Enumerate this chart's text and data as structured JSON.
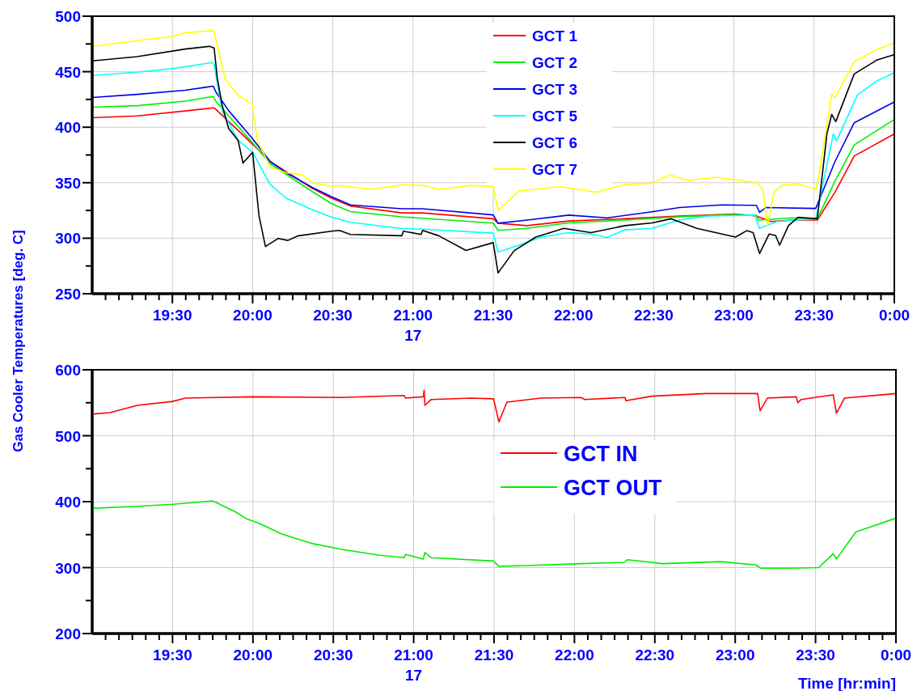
{
  "chart_data": [
    {
      "type": "line",
      "ylabel": "Gas Cooler Temperatures [deg. C]",
      "xlim": [
        19,
        24
      ],
      "ylim": [
        250,
        500
      ],
      "yticks": [
        250,
        {
          "value": 275,
          "label": null
        },
        300,
        {
          "value": 325,
          "label": null
        },
        350,
        {
          "value": 375,
          "label": null
        },
        400,
        {
          "value": 425,
          "label": null
        },
        450,
        {
          "value": 475,
          "label": null
        },
        500
      ],
      "xticks": [
        {
          "value": 19.0833,
          "label": null
        },
        {
          "value": 19.1667,
          "label": null
        },
        {
          "value": 19.25,
          "label": null
        },
        {
          "value": 19.3333,
          "label": null
        },
        {
          "value": 19.4167,
          "label": null
        },
        {
          "value": 19.5,
          "label": "19:30"
        },
        {
          "value": 19.5833,
          "label": null
        },
        {
          "value": 19.6667,
          "label": null
        },
        {
          "value": 19.75,
          "label": null
        },
        {
          "value": 19.8333,
          "label": null
        },
        {
          "value": 19.9167,
          "label": null
        },
        {
          "value": 20,
          "label": "20:00"
        },
        {
          "value": 20.0833,
          "label": null
        },
        {
          "value": 20.1667,
          "label": null
        },
        {
          "value": 20.25,
          "label": null
        },
        {
          "value": 20.3333,
          "label": null
        },
        {
          "value": 20.4167,
          "label": null
        },
        {
          "value": 20.5,
          "label": "20:30"
        },
        {
          "value": 20.5833,
          "label": null
        },
        {
          "value": 20.6667,
          "label": null
        },
        {
          "value": 20.75,
          "label": null
        },
        {
          "value": 20.8333,
          "label": null
        },
        {
          "value": 20.9167,
          "label": null
        },
        {
          "value": 21,
          "label": "21:00\n17"
        },
        {
          "value": 21.0833,
          "label": null
        },
        {
          "value": 21.1667,
          "label": null
        },
        {
          "value": 21.25,
          "label": null
        },
        {
          "value": 21.3333,
          "label": null
        },
        {
          "value": 21.4167,
          "label": null
        },
        {
          "value": 21.5,
          "label": "21:30"
        },
        {
          "value": 21.5833,
          "label": null
        },
        {
          "value": 21.6667,
          "label": null
        },
        {
          "value": 21.75,
          "label": null
        },
        {
          "value": 21.8333,
          "label": null
        },
        {
          "value": 21.9167,
          "label": null
        },
        {
          "value": 22,
          "label": "22:00"
        },
        {
          "value": 22.0833,
          "label": null
        },
        {
          "value": 22.1667,
          "label": null
        },
        {
          "value": 22.25,
          "label": null
        },
        {
          "value": 22.3333,
          "label": null
        },
        {
          "value": 22.4167,
          "label": null
        },
        {
          "value": 22.5,
          "label": "22:30"
        },
        {
          "value": 22.5833,
          "label": null
        },
        {
          "value": 22.6667,
          "label": null
        },
        {
          "value": 22.75,
          "label": null
        },
        {
          "value": 22.8333,
          "label": null
        },
        {
          "value": 22.9167,
          "label": null
        },
        {
          "value": 23,
          "label": "23:00"
        },
        {
          "value": 23.0833,
          "label": null
        },
        {
          "value": 23.1667,
          "label": null
        },
        {
          "value": 23.25,
          "label": null
        },
        {
          "value": 23.3333,
          "label": null
        },
        {
          "value": 23.4167,
          "label": null
        },
        {
          "value": 23.5,
          "label": "23:30"
        },
        {
          "value": 23.5833,
          "label": null
        },
        {
          "value": 23.6667,
          "label": null
        },
        {
          "value": 23.75,
          "label": null
        },
        {
          "value": 23.8333,
          "label": null
        },
        {
          "value": 23.9167,
          "label": null
        },
        {
          "value": 24,
          "label": "0:00"
        }
      ],
      "grid": true,
      "legend": "top",
      "series": [
        {
          "name": "GCT 1",
          "color": "#ff0000",
          "x": [
            19.0,
            19.28,
            19.58,
            19.76,
            20.0,
            20.11,
            20.37,
            20.49,
            20.61,
            20.93,
            21.06,
            21.5,
            21.53,
            21.71,
            21.97,
            22.32,
            22.66,
            23.01,
            23.14,
            23.23,
            23.36,
            23.52,
            23.63,
            23.75,
            24.0
          ],
          "values": [
            408.5,
            410.2,
            414.6,
            417.5,
            384.7,
            369,
            345.1,
            336.2,
            329,
            322.8,
            322.8,
            317.5,
            313.5,
            311.3,
            315.5,
            317.5,
            320,
            321.8,
            320,
            315,
            316.3,
            316.3,
            341.4,
            374,
            394
          ]
        },
        {
          "name": "GCT 2",
          "color": "#00ee00",
          "x": [
            19.0,
            19.28,
            19.58,
            19.755,
            19.77,
            20.0,
            20.11,
            20.37,
            20.49,
            20.61,
            20.93,
            21.06,
            21.5,
            21.53,
            21.71,
            21.97,
            22.32,
            22.66,
            23.01,
            23.14,
            23.155,
            23.36,
            23.52,
            23.63,
            23.75,
            24.0
          ],
          "values": [
            418,
            419.4,
            423.5,
            427.7,
            423.5,
            386,
            367,
            342.2,
            331.3,
            324,
            319.2,
            318,
            313.6,
            307,
            308.8,
            313.8,
            316.3,
            319.3,
            321.3,
            320.8,
            316.3,
            318.3,
            317.5,
            351.4,
            384,
            407
          ]
        },
        {
          "name": "GCT 3",
          "color": "#0000ee",
          "x": [
            19.0,
            19.28,
            19.58,
            19.755,
            19.77,
            19.85,
            20.0,
            20.11,
            20.21,
            20.37,
            20.49,
            20.61,
            20.93,
            21.06,
            21.5,
            21.53,
            21.71,
            21.97,
            22.21,
            22.49,
            22.66,
            22.92,
            23.14,
            23.16,
            23.2,
            23.51,
            23.63,
            23.75,
            24.0
          ],
          "values": [
            426.7,
            429.6,
            433.3,
            437,
            432,
            415,
            389.6,
            369,
            359,
            345.9,
            337.4,
            330,
            326.5,
            326.5,
            321,
            313.5,
            316.3,
            320.8,
            318.3,
            323.8,
            327.6,
            330,
            329.6,
            323.3,
            327.6,
            326.8,
            369,
            404,
            422.8
          ]
        },
        {
          "name": "GCT 5",
          "color": "#00ffff",
          "x": [
            19.0,
            19.28,
            19.5,
            19.747,
            19.76,
            19.81,
            19.91,
            20.0,
            20.11,
            20.21,
            20.36,
            20.49,
            20.61,
            20.93,
            21.05,
            21.5,
            21.53,
            21.66,
            21.8,
            21.97,
            22.11,
            22.21,
            22.32,
            22.49,
            22.66,
            22.84,
            23.13,
            23.16,
            23.27,
            23.51,
            23.62,
            23.64,
            23.77,
            23.89,
            24.0
          ],
          "values": [
            446.6,
            449.5,
            452.7,
            458.3,
            456.4,
            415,
            388,
            377.4,
            348.3,
            336,
            326.4,
            319,
            314.3,
            308.7,
            308.3,
            304.6,
            287.6,
            293.7,
            301,
            305,
            303.8,
            300.7,
            307.5,
            308.8,
            316.3,
            320,
            320.8,
            308.8,
            315,
            317.5,
            394,
            387.7,
            429,
            441.6,
            449
          ]
        },
        {
          "name": "GCT 6",
          "color": "#000000",
          "x": [
            19.0,
            19.28,
            19.58,
            19.73,
            19.76,
            19.78,
            19.81,
            19.85,
            19.91,
            19.94,
            20.0,
            20.04,
            20.08,
            20.16,
            20.22,
            20.28,
            20.49,
            20.54,
            20.61,
            20.93,
            20.94,
            21.05,
            21.06,
            21.16,
            21.33,
            21.5,
            21.53,
            21.63,
            21.765,
            21.94,
            22.11,
            22.32,
            22.49,
            22.61,
            22.77,
            23.01,
            23.08,
            23.12,
            23.16,
            23.22,
            23.26,
            23.285,
            23.34,
            23.4,
            23.52,
            23.58,
            23.61,
            23.635,
            23.75,
            23.89,
            24.0
          ],
          "values": [
            459.7,
            463.6,
            470.4,
            472.8,
            471.4,
            444,
            420,
            399,
            388,
            367.7,
            377.4,
            320,
            292.5,
            299.8,
            298,
            302,
            306.3,
            307,
            303.4,
            302.2,
            306.3,
            303.4,
            307,
            302.2,
            289,
            296,
            268.7,
            288.7,
            301,
            308.8,
            305,
            311.3,
            313.8,
            317.5,
            308.8,
            301,
            306.8,
            305,
            286.2,
            303.8,
            302.5,
            293.7,
            311.3,
            318.8,
            317.5,
            394,
            411.5,
            405,
            448,
            460.4,
            465.4
          ]
        },
        {
          "name": "GCT 7",
          "color": "#ffff00",
          "x": [
            19.0,
            19.28,
            19.5,
            19.58,
            19.747,
            19.76,
            19.83,
            19.915,
            19.997,
            20.0,
            20.03,
            20.11,
            20.21,
            20.31,
            20.38,
            20.49,
            20.54,
            20.74,
            20.93,
            21.06,
            21.16,
            21.36,
            21.5,
            21.53,
            21.66,
            21.92,
            22.145,
            22.32,
            22.49,
            22.6,
            22.715,
            22.89,
            23.14,
            23.18,
            23.21,
            23.25,
            23.3,
            23.4,
            23.51,
            23.527,
            23.61,
            23.63,
            23.75,
            23.89,
            24.0
          ],
          "values": [
            472.8,
            478,
            481.8,
            485,
            487,
            486.4,
            443,
            428,
            421,
            417.5,
            388,
            364,
            359,
            357,
            349.5,
            347,
            347.5,
            344,
            348,
            347.6,
            344,
            347.6,
            346.5,
            325,
            342.6,
            346.4,
            341.4,
            348.4,
            349.4,
            357,
            352,
            355,
            350,
            344,
            311,
            341.4,
            347.6,
            349,
            344,
            354,
            430,
            426.6,
            459,
            470,
            476
          ]
        }
      ]
    },
    {
      "type": "line",
      "xlabel": "Time [hr:min]",
      "xlim": [
        19,
        24
      ],
      "ylim": [
        200,
        600
      ],
      "yticks": [
        200,
        {
          "value": 250,
          "label": null
        },
        300,
        {
          "value": 350,
          "label": null
        },
        400,
        {
          "value": 450,
          "label": null
        },
        500,
        {
          "value": 550,
          "label": null
        },
        600
      ],
      "xticks": [
        {
          "value": 19.0833,
          "label": null
        },
        {
          "value": 19.1667,
          "label": null
        },
        {
          "value": 19.25,
          "label": null
        },
        {
          "value": 19.3333,
          "label": null
        },
        {
          "value": 19.4167,
          "label": null
        },
        {
          "value": 19.5,
          "label": "19:30"
        },
        {
          "value": 19.5833,
          "label": null
        },
        {
          "value": 19.6667,
          "label": null
        },
        {
          "value": 19.75,
          "label": null
        },
        {
          "value": 19.8333,
          "label": null
        },
        {
          "value": 19.9167,
          "label": null
        },
        {
          "value": 20,
          "label": "20:00"
        },
        {
          "value": 20.0833,
          "label": null
        },
        {
          "value": 20.1667,
          "label": null
        },
        {
          "value": 20.25,
          "label": null
        },
        {
          "value": 20.3333,
          "label": null
        },
        {
          "value": 20.4167,
          "label": null
        },
        {
          "value": 20.5,
          "label": "20:30"
        },
        {
          "value": 20.5833,
          "label": null
        },
        {
          "value": 20.6667,
          "label": null
        },
        {
          "value": 20.75,
          "label": null
        },
        {
          "value": 20.8333,
          "label": null
        },
        {
          "value": 20.9167,
          "label": null
        },
        {
          "value": 21,
          "label": "21:00\n17"
        },
        {
          "value": 21.0833,
          "label": null
        },
        {
          "value": 21.1667,
          "label": null
        },
        {
          "value": 21.25,
          "label": null
        },
        {
          "value": 21.3333,
          "label": null
        },
        {
          "value": 21.4167,
          "label": null
        },
        {
          "value": 21.5,
          "label": "21:30"
        },
        {
          "value": 21.5833,
          "label": null
        },
        {
          "value": 21.6667,
          "label": null
        },
        {
          "value": 21.75,
          "label": null
        },
        {
          "value": 21.8333,
          "label": null
        },
        {
          "value": 21.9167,
          "label": null
        },
        {
          "value": 22,
          "label": "22:00"
        },
        {
          "value": 22.0833,
          "label": null
        },
        {
          "value": 22.1667,
          "label": null
        },
        {
          "value": 22.25,
          "label": null
        },
        {
          "value": 22.3333,
          "label": null
        },
        {
          "value": 22.4167,
          "label": null
        },
        {
          "value": 22.5,
          "label": "22:30"
        },
        {
          "value": 22.5833,
          "label": null
        },
        {
          "value": 22.6667,
          "label": null
        },
        {
          "value": 22.75,
          "label": null
        },
        {
          "value": 22.8333,
          "label": null
        },
        {
          "value": 22.9167,
          "label": null
        },
        {
          "value": 23,
          "label": "23:00"
        },
        {
          "value": 23.0833,
          "label": null
        },
        {
          "value": 23.1667,
          "label": null
        },
        {
          "value": 23.25,
          "label": null
        },
        {
          "value": 23.3333,
          "label": null
        },
        {
          "value": 23.4167,
          "label": null
        },
        {
          "value": 23.5,
          "label": "23:30"
        },
        {
          "value": 23.5833,
          "label": null
        },
        {
          "value": 23.6667,
          "label": null
        },
        {
          "value": 23.75,
          "label": null
        },
        {
          "value": 23.8333,
          "label": null
        },
        {
          "value": 23.9167,
          "label": null
        },
        {
          "value": 24,
          "label": "0:00"
        }
      ],
      "grid": true,
      "legend": "center",
      "series": [
        {
          "name": "GCT IN",
          "color": "#ff0000",
          "x": [
            19.01,
            19.11,
            19.28,
            19.5,
            19.58,
            20.01,
            20.545,
            20.94,
            20.95,
            21.06,
            21.065,
            21.07,
            21.11,
            21.36,
            21.497,
            21.53,
            21.58,
            21.79,
            22.04,
            22.065,
            22.315,
            22.32,
            22.48,
            22.82,
            23.14,
            23.155,
            23.2,
            23.38,
            23.39,
            23.41,
            23.61,
            23.63,
            23.68,
            24.0
          ],
          "values": [
            533,
            535,
            546,
            552,
            557,
            559,
            558,
            561,
            557,
            559,
            569,
            546,
            555,
            557,
            556,
            521,
            551,
            557,
            558,
            555,
            558,
            553,
            560,
            564,
            564,
            538,
            557,
            559,
            550,
            555,
            562,
            534,
            557,
            564
          ]
        },
        {
          "name": "GCT OUT",
          "color": "#00ee00",
          "x": [
            19.01,
            19.28,
            19.5,
            19.745,
            19.76,
            19.895,
            19.96,
            20.03,
            20.18,
            20.36,
            20.545,
            20.78,
            20.94,
            20.95,
            21.06,
            21.07,
            21.11,
            21.495,
            21.53,
            21.7,
            22.04,
            22.31,
            22.33,
            22.55,
            22.91,
            23.13,
            23.16,
            23.34,
            23.52,
            23.61,
            23.63,
            23.75,
            24.0
          ],
          "values": [
            390,
            393,
            396,
            401,
            400,
            384,
            374,
            368,
            351,
            337,
            328,
            319,
            315,
            320,
            313,
            323,
            315,
            310,
            302,
            303,
            306,
            308,
            312,
            306,
            309,
            304,
            299,
            299,
            300,
            321,
            313,
            354,
            375
          ]
        }
      ]
    }
  ]
}
